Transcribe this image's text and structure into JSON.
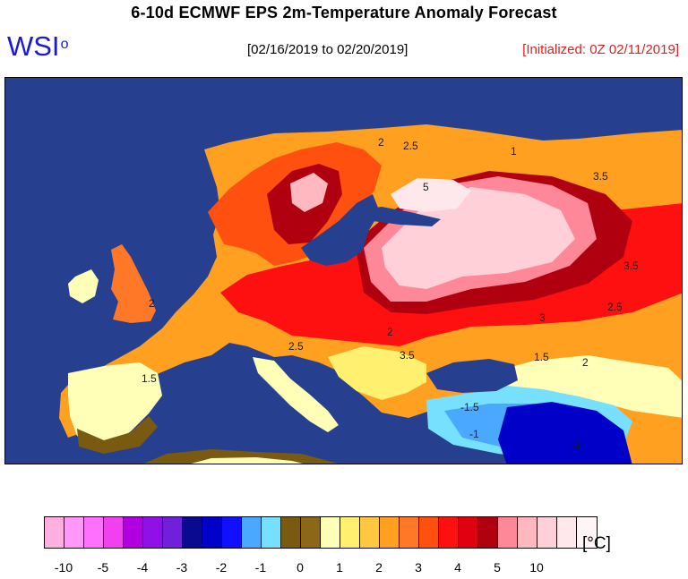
{
  "header": {
    "title": "6-10d ECMWF EPS 2m-Temperature Anomaly Forecast",
    "logo": "WSI",
    "logo_mark": "o",
    "date_range": "[02/16/2019 to 02/20/2019]",
    "initialized": "[Initialized: 0Z 02/11/2019]"
  },
  "map": {
    "ocean_color": "#26408f",
    "contour_labels": [
      "1",
      "2",
      "2.5",
      "3.5",
      "5",
      "3.5",
      "2.5",
      "3",
      "3.5",
      "2",
      "2.5",
      "1.5",
      "1.5",
      "2",
      "-1.5",
      "-1",
      "-2",
      "2"
    ]
  },
  "legend": {
    "unit": "[°C]",
    "colors": [
      "#ffb0e0",
      "#ff98f8",
      "#ff70ff",
      "#f040f0",
      "#b000e0",
      "#9010e8",
      "#7020d8",
      "#0a0a90",
      "#0000c8",
      "#1010ff",
      "#4aa8ff",
      "#78e0ff",
      "#7a5a10",
      "#8a6818",
      "#ffffb8",
      "#fff070",
      "#ffc840",
      "#ffa020",
      "#ff7828",
      "#ff5010",
      "#ff1010",
      "#e00010",
      "#b00010",
      "#ff8898",
      "#ffb8c0",
      "#ffd0d8",
      "#ffe8ec",
      "#fff4f6"
    ],
    "tick_labels": [
      "-10",
      "-5",
      "-4",
      "-3",
      "-2",
      "-1",
      "0",
      "1",
      "2",
      "3",
      "4",
      "5",
      "10"
    ]
  }
}
